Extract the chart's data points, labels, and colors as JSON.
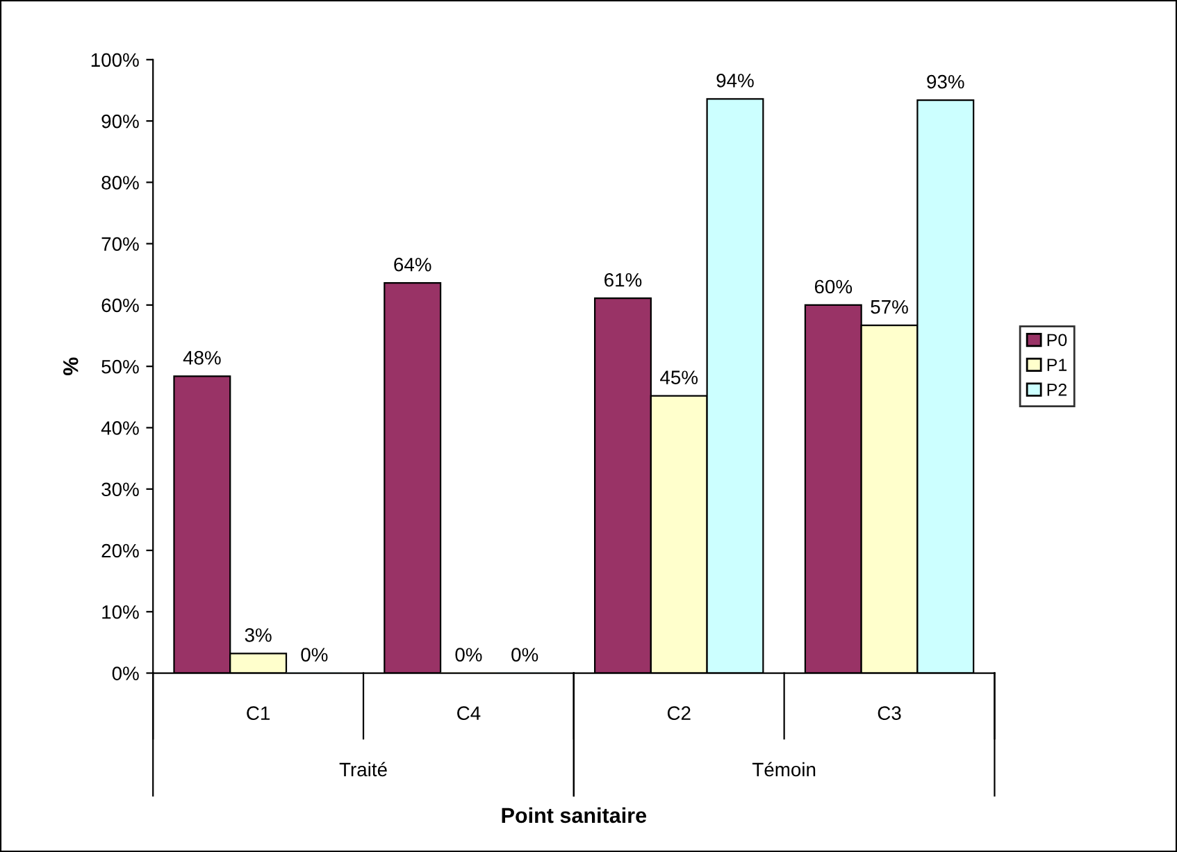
{
  "chart_data": {
    "type": "bar",
    "xlabel": "Point sanitaire",
    "ylabel": "%",
    "categories": [
      "C1",
      "C4",
      "C2",
      "C3"
    ],
    "annotations": [
      "Traité",
      "Témoin"
    ],
    "series": [
      {
        "name": "P0",
        "color": "#993366",
        "values": [
          48.4,
          63.6,
          61.1,
          60.0
        ],
        "value_labels": [
          "48%",
          "64%",
          "61%",
          "60%"
        ]
      },
      {
        "name": "P1",
        "color": "#ffffcc",
        "values": [
          3.2,
          0,
          45.2,
          56.7
        ],
        "value_labels": [
          "3%",
          "0%",
          "45%",
          "57%"
        ]
      },
      {
        "name": "P2",
        "color": "#ccffff",
        "values": [
          0,
          0,
          93.6,
          93.4
        ],
        "value_labels": [
          "0%",
          "0%",
          "94%",
          "93%"
        ]
      }
    ],
    "ylim": [
      0,
      100
    ],
    "yticks": [
      {
        "value": 0,
        "label": "0%"
      },
      {
        "value": 10,
        "label": "10%"
      },
      {
        "value": 20,
        "label": "20%"
      },
      {
        "value": 30,
        "label": "30%"
      },
      {
        "value": 40,
        "label": "40%"
      },
      {
        "value": 50,
        "label": "50%"
      },
      {
        "value": 60,
        "label": "60%"
      },
      {
        "value": 70,
        "label": "70%"
      },
      {
        "value": 80,
        "label": "80%"
      },
      {
        "value": 90,
        "label": "90%"
      },
      {
        "value": 100,
        "label": "100%"
      }
    ],
    "grid": false,
    "legend": "right"
  }
}
